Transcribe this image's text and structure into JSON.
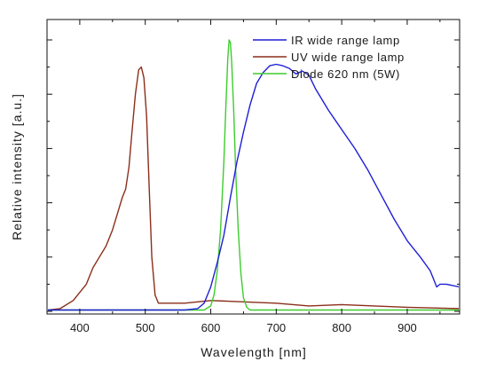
{
  "chart_data": {
    "type": "line",
    "title": "",
    "xlabel": "Wavelength [nm]",
    "ylabel": "Relative intensity [a.u.]",
    "xlim": [
      350,
      980
    ],
    "ylim": [
      0,
      1
    ],
    "xticks": [
      400,
      500,
      600,
      700,
      800,
      900
    ],
    "yticks_labeled": false,
    "grid": false,
    "legend_position": "top-right",
    "series": [
      {
        "name": "IR wide range lamp",
        "color": "#1f1fd6",
        "x": [
          350,
          560,
          580,
          590,
          600,
          610,
          620,
          630,
          640,
          650,
          660,
          670,
          680,
          690,
          700,
          710,
          720,
          730,
          740,
          750,
          760,
          780,
          800,
          820,
          840,
          860,
          880,
          900,
          920,
          935,
          945,
          950,
          960,
          980
        ],
        "y": [
          0.005,
          0.005,
          0.01,
          0.03,
          0.09,
          0.18,
          0.28,
          0.42,
          0.55,
          0.66,
          0.76,
          0.84,
          0.88,
          0.905,
          0.91,
          0.905,
          0.895,
          0.875,
          0.885,
          0.87,
          0.82,
          0.74,
          0.67,
          0.6,
          0.52,
          0.43,
          0.34,
          0.26,
          0.2,
          0.15,
          0.09,
          0.1,
          0.1,
          0.09
        ]
      },
      {
        "name": "UV wide range lamp",
        "color": "#8b2e1a",
        "x": [
          350,
          370,
          390,
          410,
          420,
          430,
          440,
          450,
          460,
          465,
          470,
          475,
          480,
          485,
          490,
          494,
          498,
          502,
          506,
          510,
          515,
          520,
          540,
          560,
          600,
          650,
          700,
          750,
          800,
          850,
          900,
          980
        ],
        "y": [
          0.005,
          0.01,
          0.04,
          0.1,
          0.16,
          0.2,
          0.24,
          0.3,
          0.38,
          0.42,
          0.45,
          0.53,
          0.67,
          0.8,
          0.89,
          0.9,
          0.86,
          0.72,
          0.46,
          0.2,
          0.06,
          0.03,
          0.03,
          0.03,
          0.04,
          0.035,
          0.03,
          0.02,
          0.025,
          0.02,
          0.015,
          0.01
        ]
      },
      {
        "name": "Diode 620 nm (5W)",
        "color": "#3ecc2e",
        "x": [
          350,
          590,
          600,
          605,
          610,
          615,
          620,
          623,
          626,
          628,
          630,
          632,
          635,
          638,
          642,
          646,
          650,
          655,
          660,
          980
        ],
        "y": [
          0.005,
          0.005,
          0.02,
          0.06,
          0.15,
          0.3,
          0.55,
          0.75,
          0.93,
          1.0,
          0.99,
          0.92,
          0.74,
          0.52,
          0.3,
          0.14,
          0.05,
          0.015,
          0.005,
          0.005
        ]
      }
    ]
  }
}
